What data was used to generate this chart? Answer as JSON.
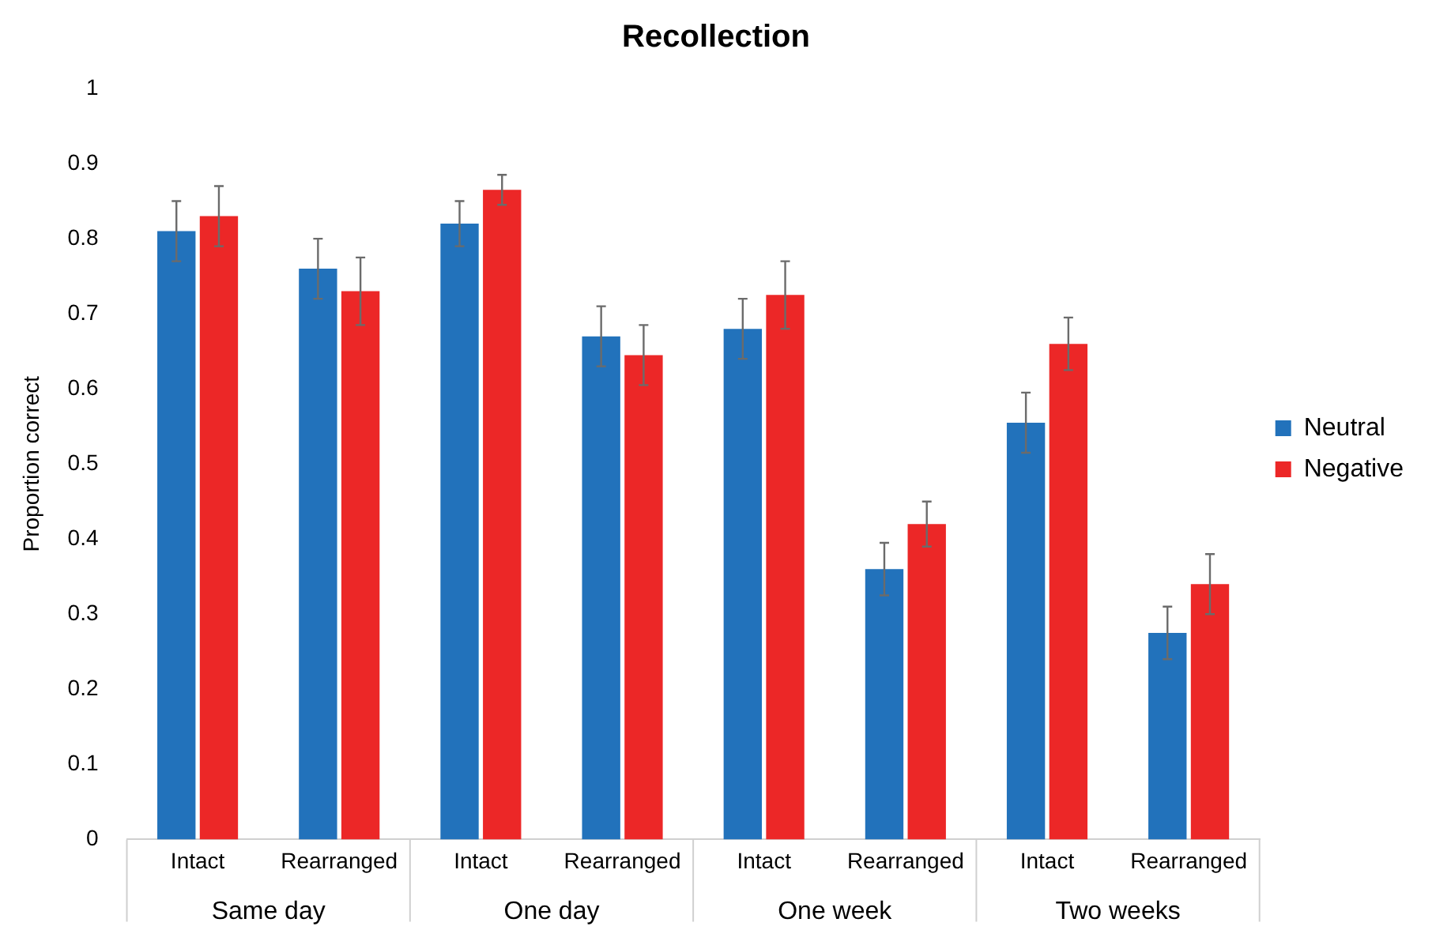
{
  "chart_data": {
    "type": "bar",
    "title": "Recollection",
    "ylabel": "Proportion correct",
    "categories": [
      "Intact",
      "Rearranged",
      "Intact",
      "Rearranged",
      "Intact",
      "Rearranged",
      "Intact",
      "Rearranged"
    ],
    "annotations": [
      "Same day",
      "One day",
      "One week",
      "Two weeks"
    ],
    "series": [
      {
        "name": "Neutral",
        "color": "#2272bb",
        "values": [
          0.81,
          0.76,
          0.82,
          0.67,
          0.68,
          0.36,
          0.555,
          0.275
        ],
        "errors": [
          0.04,
          0.04,
          0.03,
          0.04,
          0.04,
          0.035,
          0.04,
          0.035
        ]
      },
      {
        "name": "Negative",
        "color": "#ec2727",
        "values": [
          0.83,
          0.73,
          0.865,
          0.645,
          0.725,
          0.42,
          0.66,
          0.34
        ],
        "errors": [
          0.04,
          0.045,
          0.02,
          0.04,
          0.045,
          0.03,
          0.035,
          0.04
        ]
      }
    ],
    "ylim": [
      0,
      1
    ],
    "yticks": [
      0,
      0.1,
      0.2,
      0.3,
      0.4,
      0.5,
      0.6,
      0.7,
      0.8,
      0.9,
      1
    ],
    "grid": false,
    "legend": "right"
  }
}
